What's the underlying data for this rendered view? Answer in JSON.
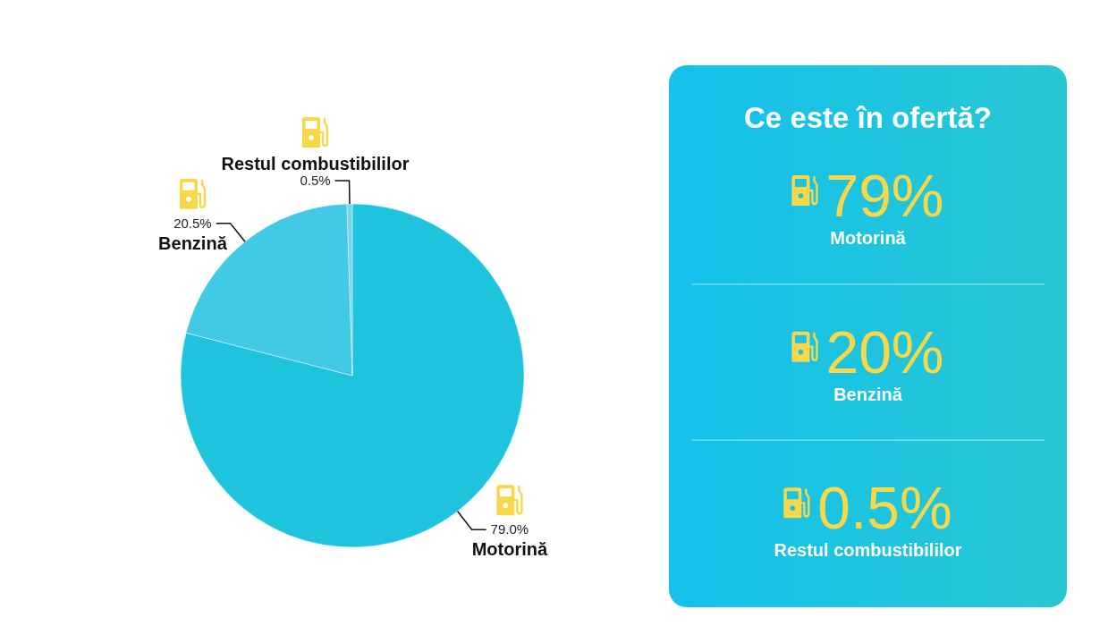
{
  "chart_data": [
    {
      "type": "pie",
      "categories": [
        "Motorină",
        "Benzină",
        "Restul combustibililor"
      ],
      "values": [
        79.0,
        20.5,
        0.5
      ],
      "colors": [
        "#1ec4dd",
        "#42c9e6",
        "#76d4ec"
      ],
      "value_labels": [
        "79.0%",
        "20.5%",
        "0.5%"
      ]
    },
    {
      "type": "other",
      "title": "Ce este în ofertă?",
      "annotations": [
        "79%",
        "Motorină",
        "20%",
        "Benzină",
        "0.5%",
        "Restul combustibililor"
      ]
    }
  ]
}
